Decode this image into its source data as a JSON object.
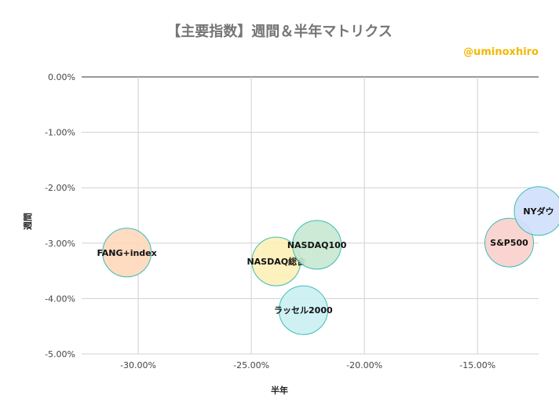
{
  "title": "【主要指数】週間＆半年マトリクス",
  "watermark": "@uminoxhiro",
  "chart_data": {
    "type": "scatter",
    "title": "【主要指数】週間＆半年マトリクス",
    "xlabel": "半年",
    "ylabel": "週間",
    "xlim": [
      -32.5,
      -12.3
    ],
    "ylim": [
      -5.0,
      0.0
    ],
    "x_ticks": [
      -30,
      -25,
      -20,
      -15
    ],
    "x_tick_labels": [
      "-30.00%",
      "-25.00%",
      "-20.00%",
      "-15.00%"
    ],
    "y_ticks": [
      0,
      -1,
      -2,
      -3,
      -4,
      -5
    ],
    "y_tick_labels": [
      "0.00%",
      "-1.00%",
      "-2.00%",
      "-3.00%",
      "-4.00%",
      "-5.00%"
    ],
    "grid": true,
    "legend": "none",
    "points": [
      {
        "label": "FANG+index",
        "x": -30.5,
        "y": -3.17,
        "color": "#fdd8bb"
      },
      {
        "label": "NASDAQ総合",
        "x": -23.9,
        "y": -3.33,
        "color": "#fdefb6"
      },
      {
        "label": "NASDAQ100",
        "x": -22.1,
        "y": -3.03,
        "color": "#c7e8d1"
      },
      {
        "label": "ラッセル2000",
        "x": -22.7,
        "y": -4.21,
        "color": "#cbeff3"
      },
      {
        "label": "S&P500",
        "x": -13.6,
        "y": -2.99,
        "color": "#f9cfcb"
      },
      {
        "label": "NYダウ",
        "x": -12.3,
        "y": -2.42,
        "color": "#cfe0fb"
      }
    ]
  }
}
